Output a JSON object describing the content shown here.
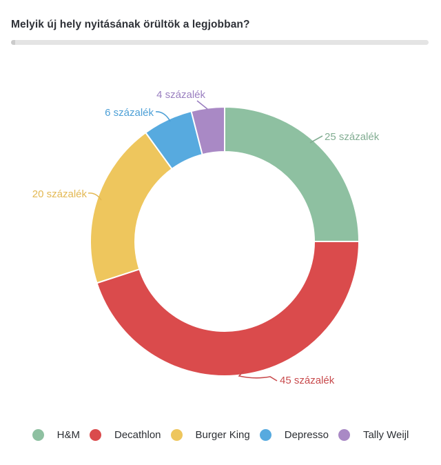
{
  "page": {
    "title": "Melyik új hely nyitásának örültök a legjobban?"
  },
  "chart_data": {
    "type": "pie",
    "subtype": "donut",
    "title": "Melyik új hely nyitásának örültök a legjobban?",
    "unit": "százalék",
    "legend_position": "bottom",
    "total": 100,
    "slices": [
      {
        "name": "H&M",
        "value": 25,
        "label": "25 százalék",
        "color": "#8ec0a1",
        "label_color": "#82ad92"
      },
      {
        "name": "Decathlon",
        "value": 45,
        "label": "45 százalék",
        "color": "#da4b4c",
        "label_color": "#c84a4c"
      },
      {
        "name": "Burger King",
        "value": 20,
        "label": "20 százalék",
        "color": "#eec65d",
        "label_color": "#e3b852"
      },
      {
        "name": "Depresso",
        "value": 6,
        "label": "6 százalék",
        "color": "#57aadf",
        "label_color": "#4c9fd6"
      },
      {
        "name": "Tally Weijl",
        "value": 4,
        "label": "4 százalék",
        "color": "#a989c5",
        "label_color": "#9a7fc0"
      }
    ]
  }
}
